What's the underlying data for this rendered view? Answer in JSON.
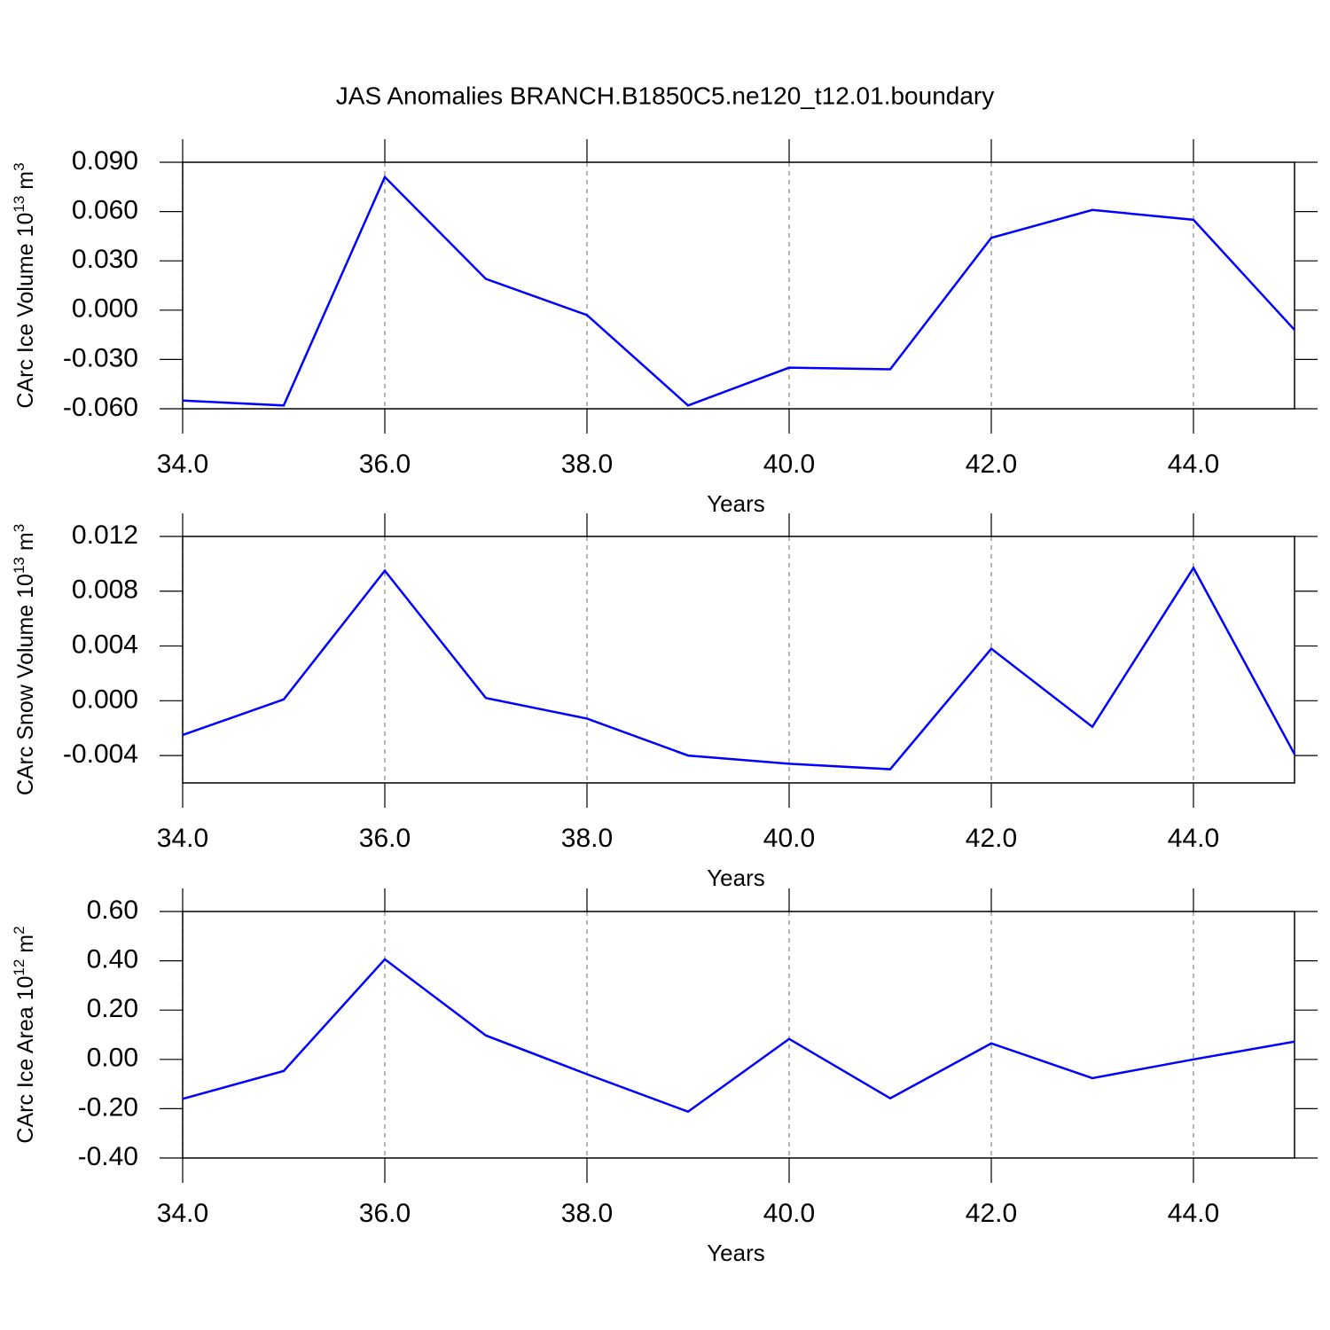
{
  "title": "JAS Anomalies BRANCH.B1850C5.ne120_t12.01.boundary",
  "chart_data": [
    {
      "type": "line",
      "ylabel": [
        "CArc Ice Volume 10",
        "13",
        "m",
        "3"
      ],
      "xlabel": "Years",
      "x": [
        34,
        35,
        36,
        37,
        38,
        39,
        40,
        41,
        42,
        43,
        44,
        45
      ],
      "series": [
        {
          "color": "#0000ff",
          "values": [
            -0.055,
            -0.058,
            0.081,
            0.019,
            -0.003,
            -0.058,
            -0.035,
            -0.036,
            0.044,
            0.061,
            0.055,
            -0.012
          ]
        }
      ],
      "xlim": [
        34,
        45
      ],
      "ylim": [
        -0.06,
        0.09
      ],
      "xticks": [
        {
          "value": 34,
          "label": "34.0"
        },
        {
          "value": 36,
          "label": "36.0"
        },
        {
          "value": 38,
          "label": "38.0"
        },
        {
          "value": 40,
          "label": "40.0"
        },
        {
          "value": 42,
          "label": "42.0"
        },
        {
          "value": 44,
          "label": "44.0"
        }
      ],
      "yticks": [
        {
          "value": -0.06,
          "label": "-0.060"
        },
        {
          "value": -0.03,
          "label": "-0.030"
        },
        {
          "value": 0,
          "label": "0.000"
        },
        {
          "value": 0.03,
          "label": "0.030"
        },
        {
          "value": 0.06,
          "label": "0.060"
        },
        {
          "value": 0.09,
          "label": "0.090"
        }
      ],
      "xgrid": true
    },
    {
      "type": "line",
      "ylabel": [
        "CArc Snow Volume 10",
        "13",
        "m",
        "3"
      ],
      "xlabel": "Years",
      "x": [
        34,
        35,
        36,
        37,
        38,
        39,
        40,
        41,
        42,
        43,
        44,
        45
      ],
      "series": [
        {
          "color": "#0000ff",
          "values": [
            -0.0025,
            0.0001,
            0.0095,
            0.0002,
            -0.0013,
            -0.004,
            -0.0046,
            -0.005,
            0.0038,
            -0.0019,
            0.0097,
            -0.0039
          ]
        }
      ],
      "xlim": [
        34,
        45
      ],
      "ylim": [
        -0.006,
        0.012
      ],
      "xticks": [
        {
          "value": 34,
          "label": "34.0"
        },
        {
          "value": 36,
          "label": "36.0"
        },
        {
          "value": 38,
          "label": "38.0"
        },
        {
          "value": 40,
          "label": "40.0"
        },
        {
          "value": 42,
          "label": "42.0"
        },
        {
          "value": 44,
          "label": "44.0"
        }
      ],
      "yticks": [
        {
          "value": -0.004,
          "label": "-0.004"
        },
        {
          "value": 0,
          "label": "0.000"
        },
        {
          "value": 0.004,
          "label": "0.004"
        },
        {
          "value": 0.008,
          "label": "0.008"
        },
        {
          "value": 0.012,
          "label": "0.012"
        }
      ],
      "xgrid": true
    },
    {
      "type": "line",
      "ylabel": [
        "CArc Ice Area 10",
        "12",
        "m",
        "2"
      ],
      "xlabel": "Years",
      "x": [
        34,
        35,
        36,
        37,
        38,
        39,
        40,
        41,
        42,
        43,
        44,
        45
      ],
      "series": [
        {
          "color": "#0000ff",
          "values": [
            -0.16,
            -0.047,
            0.406,
            0.097,
            -0.06,
            -0.212,
            0.083,
            -0.158,
            0.065,
            -0.076,
            0,
            0.072
          ]
        }
      ],
      "xlim": [
        34,
        45
      ],
      "ylim": [
        -0.4,
        0.6
      ],
      "xticks": [
        {
          "value": 34,
          "label": "34.0"
        },
        {
          "value": 36,
          "label": "36.0"
        },
        {
          "value": 38,
          "label": "38.0"
        },
        {
          "value": 40,
          "label": "40.0"
        },
        {
          "value": 42,
          "label": "42.0"
        },
        {
          "value": 44,
          "label": "44.0"
        }
      ],
      "yticks": [
        {
          "value": -0.4,
          "label": "-0.40"
        },
        {
          "value": -0.2,
          "label": "-0.20"
        },
        {
          "value": 0,
          "label": "0.00"
        },
        {
          "value": 0.2,
          "label": "0.20"
        },
        {
          "value": 0.4,
          "label": "0.40"
        },
        {
          "value": 0.6,
          "label": "0.60"
        }
      ],
      "xgrid": true
    }
  ]
}
